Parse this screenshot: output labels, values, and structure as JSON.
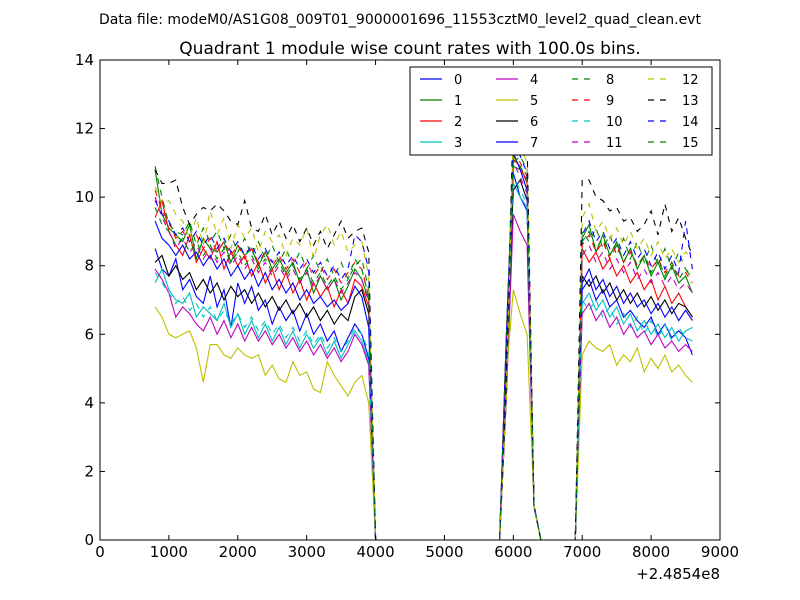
{
  "chart_data": {
    "type": "line",
    "suptitle": "Data file: modeM0/AS1G08_009T01_9000001696_11553cztM0_level2_quad_clean.evt",
    "title": "Quadrant 1 module wise count rates with 100.0s bins.",
    "xlabel": "",
    "ylabel": "",
    "x_offset_label": "+2.4854e8",
    "xlim": [
      0,
      9000
    ],
    "ylim": [
      0,
      14
    ],
    "xticks": [
      0,
      1000,
      2000,
      3000,
      4000,
      5000,
      6000,
      7000,
      8000,
      9000
    ],
    "yticks": [
      0,
      2,
      4,
      6,
      8,
      10,
      12,
      14
    ],
    "legend_position": "top-right",
    "x": {
      "start": 800,
      "step": 100,
      "count": 78
    },
    "series": [
      {
        "name": "0",
        "color": "#0000ff",
        "dash": "solid",
        "seg1": [
          8.5,
          7.9,
          7.7,
          8.2,
          7.3,
          7.6,
          7.1,
          6.9,
          7.7,
          6.8,
          7.3,
          6.2,
          7.5,
          6.9,
          7.4,
          6.7,
          7.0,
          6.3,
          6.8,
          6.4,
          6.7,
          6.1,
          6.6,
          6.0,
          6.3,
          5.8,
          6.1,
          5.5,
          5.9,
          6.3,
          6.0,
          5.3
        ],
        "seg2": [
          10.7,
          10.0,
          9.6
        ],
        "seg3": [
          7.3,
          7.6,
          7.0,
          7.3,
          6.8,
          7.0,
          6.5,
          6.7,
          6.4,
          6.2,
          6.5,
          6.0,
          6.3,
          5.9,
          6.1,
          5.9,
          5.4
        ],
        "scale": 1.0
      },
      {
        "name": "1",
        "color": "#008000",
        "dash": "solid",
        "seg1": [
          10.8,
          9.5,
          9.1,
          8.9,
          8.7,
          9.2,
          8.2,
          8.8,
          8.5,
          8.4,
          8.7,
          8.1,
          8.6,
          8.3,
          8.5,
          8.0,
          8.4,
          7.9,
          8.2,
          7.8,
          8.1,
          7.5,
          7.9,
          7.2,
          7.7,
          7.3,
          7.6,
          7.0,
          7.4,
          7.9,
          7.6,
          7.0
        ],
        "seg2": [
          10.9,
          10.8,
          10.5
        ],
        "seg3": [
          8.8,
          9.2,
          8.4,
          8.9,
          8.3,
          8.7,
          8.1,
          8.5,
          7.9,
          8.3,
          7.7,
          8.1,
          7.6,
          8.0,
          7.5,
          7.7,
          7.2
        ],
        "scale": 1.0
      },
      {
        "name": "2",
        "color": "#ff0000",
        "dash": "solid",
        "seg1": [
          9.4,
          9.9,
          9.0,
          8.6,
          8.3,
          8.9,
          8.1,
          8.5,
          8.2,
          8.7,
          7.9,
          8.4,
          8.0,
          8.3,
          7.7,
          8.1,
          7.5,
          7.9,
          7.3,
          7.8,
          7.2,
          7.6,
          7.0,
          7.5,
          7.1,
          7.4,
          6.8,
          7.3,
          6.9,
          7.6,
          7.4,
          6.8
        ],
        "seg2": [
          11.1,
          10.9,
          10.4
        ],
        "seg3": [
          8.5,
          8.1,
          8.4,
          7.9,
          8.2,
          7.7,
          8.0,
          7.5,
          7.8,
          7.3,
          7.6,
          7.0,
          7.4,
          6.9,
          7.2,
          6.8,
          6.5
        ],
        "scale": 1.0
      },
      {
        "name": "3",
        "color": "#00bfbf",
        "dash": "solid",
        "seg1": [
          7.5,
          7.9,
          7.3,
          7.0,
          6.9,
          7.2,
          6.5,
          6.8,
          6.6,
          6.4,
          6.9,
          6.2,
          6.6,
          6.0,
          6.4,
          5.9,
          6.3,
          5.8,
          6.2,
          5.7,
          6.1,
          5.6,
          6.0,
          5.6,
          5.9,
          5.4,
          5.8,
          5.3,
          5.7,
          6.1,
          5.8,
          5.2
        ],
        "seg2": [
          10.4,
          10.0,
          9.7
        ],
        "seg3": [
          6.9,
          7.2,
          6.7,
          7.0,
          6.5,
          6.8,
          6.3,
          6.6,
          6.1,
          6.4,
          6.0,
          6.3,
          5.9,
          6.2,
          5.8,
          6.1,
          6.2
        ],
        "scale": 1.0
      },
      {
        "name": "4",
        "color": "#bf00bf",
        "dash": "solid",
        "seg1": [
          7.9,
          7.6,
          7.2,
          6.5,
          6.8,
          6.6,
          6.3,
          6.1,
          6.5,
          6.0,
          6.4,
          5.9,
          6.3,
          5.8,
          6.2,
          5.8,
          6.1,
          5.7,
          6.0,
          5.6,
          5.9,
          5.5,
          5.8,
          5.4,
          5.7,
          5.3,
          5.6,
          5.2,
          5.5,
          6.0,
          5.7,
          5.1
        ],
        "seg2": [
          9.5,
          9.0,
          8.6
        ],
        "seg3": [
          6.6,
          6.9,
          6.4,
          6.7,
          6.2,
          6.5,
          6.0,
          6.3,
          5.9,
          6.1,
          5.7,
          6.0,
          5.6,
          5.8,
          5.5,
          5.7,
          5.5
        ],
        "scale": 1.0
      },
      {
        "name": "5",
        "color": "#bfbf00",
        "dash": "solid",
        "seg1": [
          6.8,
          6.5,
          6.0,
          5.9,
          6.0,
          6.1,
          5.6,
          4.6,
          5.7,
          5.7,
          5.4,
          5.3,
          5.6,
          5.4,
          5.3,
          5.4,
          4.8,
          5.1,
          4.7,
          4.6,
          5.2,
          4.8,
          4.9,
          4.4,
          4.3,
          5.2,
          4.8,
          4.5,
          4.2,
          4.6,
          4.8,
          4.0
        ],
        "seg2": [
          7.3,
          6.6,
          6.0
        ],
        "seg3": [
          5.4,
          5.8,
          5.6,
          5.5,
          5.7,
          5.1,
          5.4,
          5.2,
          5.6,
          4.9,
          5.3,
          5.0,
          5.4,
          4.9,
          5.1,
          4.8,
          4.6
        ],
        "scale": 1.0
      },
      {
        "name": "6",
        "color": "#000000",
        "dash": "solid",
        "seg1": [
          8.1,
          8.3,
          7.7,
          8.0,
          7.6,
          7.8,
          7.3,
          7.6,
          7.2,
          7.5,
          7.0,
          7.4,
          7.1,
          7.3,
          6.9,
          7.2,
          6.8,
          7.1,
          6.7,
          7.0,
          6.6,
          6.9,
          6.5,
          6.8,
          6.4,
          6.7,
          6.3,
          6.6,
          6.4,
          7.1,
          7.3,
          6.6
        ],
        "seg2": [
          10.2,
          10.5,
          9.9
        ],
        "seg3": [
          7.7,
          7.4,
          7.7,
          7.2,
          7.5,
          7.0,
          7.3,
          6.9,
          7.2,
          6.8,
          7.1,
          6.7,
          7.0,
          6.6,
          6.9,
          6.8,
          6.5
        ],
        "scale": 1.0
      },
      {
        "name": "7",
        "color": "#0000ff",
        "dash": "solid",
        "seg1": [
          9.3,
          8.8,
          8.6,
          8.3,
          8.6,
          8.2,
          8.4,
          8.0,
          8.3,
          7.9,
          8.2,
          7.7,
          8.0,
          7.6,
          7.9,
          7.4,
          7.8,
          7.3,
          7.6,
          7.2,
          7.5,
          7.0,
          7.3,
          6.9,
          7.1,
          6.8,
          7.0,
          6.7,
          6.9,
          7.4,
          7.1,
          6.2
        ],
        "seg2": [
          11.3,
          10.8,
          10.2
        ],
        "seg3": [
          7.5,
          7.9,
          7.3,
          7.6,
          7.1,
          7.4,
          6.9,
          7.2,
          6.8,
          7.0,
          6.6,
          6.9,
          6.5,
          6.8,
          6.4,
          6.7,
          6.4
        ],
        "scale": 1.0
      },
      {
        "name": "8",
        "color": "#008000",
        "dash": "dashed",
        "seg1": [
          10.9,
          10.0,
          9.2,
          9.0,
          8.9,
          9.3,
          8.6,
          9.1,
          8.7,
          9.0,
          8.5,
          8.9,
          8.4,
          8.8,
          8.3,
          8.7,
          8.2,
          8.6,
          8.1,
          8.5,
          8.0,
          8.4,
          7.9,
          8.3,
          7.8,
          8.2,
          7.7,
          8.1,
          7.6,
          8.0,
          8.2,
          7.3
        ],
        "seg2": [
          11.0,
          11.2,
          10.8
        ],
        "seg3": [
          9.0,
          8.7,
          9.1,
          8.5,
          8.9,
          8.3,
          8.8,
          8.2,
          8.7,
          8.1,
          8.6,
          8.0,
          8.5,
          7.9,
          8.4,
          7.9,
          7.7
        ],
        "scale": 1.0
      },
      {
        "name": "9",
        "color": "#ff0000",
        "dash": "dashed",
        "seg1": [
          10.2,
          9.6,
          9.3,
          8.8,
          9.0,
          8.7,
          8.9,
          8.5,
          8.8,
          8.4,
          8.7,
          8.3,
          8.6,
          8.2,
          8.5,
          8.1,
          8.4,
          8.0,
          8.3,
          7.9,
          8.2,
          7.8,
          8.1,
          7.7,
          8.0,
          7.6,
          7.9,
          7.5,
          7.8,
          8.1,
          7.9,
          7.1
        ],
        "seg2": [
          11.4,
          11.0,
          10.6
        ],
        "seg3": [
          8.6,
          8.9,
          8.4,
          8.7,
          8.2,
          8.6,
          8.1,
          8.4,
          8.0,
          8.3,
          7.9,
          8.2,
          7.8,
          8.1,
          7.7,
          7.8,
          7.5
        ],
        "scale": 1.0
      },
      {
        "name": "10",
        "color": "#00bfbf",
        "dash": "dashed",
        "seg1": [
          7.8,
          7.5,
          7.2,
          6.9,
          7.1,
          6.7,
          6.9,
          6.5,
          6.8,
          6.4,
          6.7,
          6.3,
          6.6,
          6.2,
          6.5,
          6.1,
          6.4,
          6.0,
          6.3,
          5.9,
          6.2,
          5.8,
          6.1,
          5.7,
          6.0,
          5.6,
          5.9,
          5.5,
          5.8,
          6.2,
          6.0,
          5.5
        ],
        "seg2": [
          10.6,
          10.2,
          9.8
        ],
        "seg3": [
          7.0,
          6.7,
          7.0,
          6.5,
          6.8,
          6.3,
          6.6,
          6.2,
          6.5,
          6.0,
          6.4,
          5.9,
          6.3,
          5.8,
          6.2,
          5.9,
          5.8
        ],
        "scale": 1.0
      },
      {
        "name": "11",
        "color": "#bf00bf",
        "dash": "dashed",
        "seg1": [
          10.0,
          9.4,
          9.0,
          8.5,
          8.8,
          8.4,
          8.6,
          8.2,
          8.5,
          8.1,
          8.4,
          8.0,
          8.3,
          7.9,
          8.2,
          7.8,
          8.1,
          7.7,
          8.0,
          7.6,
          7.9,
          7.5,
          7.8,
          7.4,
          7.7,
          7.3,
          7.6,
          7.2,
          7.5,
          7.8,
          7.6,
          6.9
        ],
        "seg2": [
          11.0,
          10.6,
          10.1
        ],
        "seg3": [
          8.3,
          8.6,
          8.1,
          8.4,
          7.9,
          8.2,
          7.8,
          8.1,
          7.6,
          7.9,
          7.5,
          7.8,
          7.4,
          7.7,
          7.3,
          7.5,
          7.2
        ],
        "scale": 1.0
      },
      {
        "name": "12",
        "color": "#bfbf00",
        "dash": "dashed",
        "seg1": [
          10.3,
          9.8,
          9.9,
          9.5,
          9.3,
          8.8,
          9.4,
          8.6,
          9.6,
          8.9,
          9.4,
          8.5,
          9.2,
          8.8,
          9.1,
          8.4,
          9.0,
          8.7,
          8.9,
          8.3,
          8.8,
          8.6,
          9.1,
          8.2,
          8.9,
          9.2,
          8.6,
          9.0,
          8.4,
          8.6,
          8.7,
          7.7
        ],
        "seg2": [
          12.0,
          11.5,
          11.0
        ],
        "seg3": [
          9.4,
          9.8,
          9.0,
          9.3,
          8.8,
          9.1,
          8.6,
          9.0,
          8.5,
          8.8,
          8.3,
          8.7,
          8.2,
          8.5,
          8.1,
          8.4,
          8.2
        ],
        "scale": 1.0
      },
      {
        "name": "13",
        "color": "#000000",
        "dash": "dashed",
        "seg1": [
          10.8,
          10.4,
          10.4,
          10.5,
          9.7,
          9.2,
          9.5,
          9.7,
          9.6,
          9.8,
          9.6,
          9.3,
          9.2,
          9.9,
          9.1,
          9.0,
          9.5,
          8.9,
          9.3,
          8.8,
          9.2,
          8.7,
          9.1,
          8.6,
          9.0,
          8.5,
          8.9,
          9.3,
          8.8,
          9.0,
          9.1,
          8.4
        ],
        "seg2": [
          12.5,
          12.2,
          11.6
        ],
        "seg3": [
          10.5,
          10.5,
          10.0,
          9.9,
          9.6,
          9.7,
          9.3,
          9.4,
          9.0,
          9.2,
          9.6,
          8.9,
          9.8,
          9.0,
          9.4,
          8.8,
          8.3
        ],
        "scale": 1.0
      },
      {
        "name": "14",
        "color": "#0000ff",
        "dash": "dashed",
        "seg1": [
          9.9,
          9.5,
          9.3,
          8.9,
          9.1,
          8.7,
          9.0,
          8.6,
          8.9,
          8.5,
          8.8,
          8.4,
          8.7,
          8.3,
          8.6,
          8.2,
          8.5,
          8.1,
          8.4,
          8.0,
          8.3,
          7.9,
          8.2,
          7.8,
          8.1,
          7.7,
          8.0,
          7.6,
          7.9,
          8.9,
          8.7,
          7.9
        ],
        "seg2": [
          11.6,
          11.2,
          10.7
        ],
        "seg3": [
          8.9,
          9.3,
          8.7,
          9.0,
          8.5,
          8.8,
          8.3,
          8.7,
          8.2,
          8.5,
          8.0,
          8.4,
          7.9,
          8.3,
          7.8,
          9.3,
          7.9
        ],
        "scale": 1.0
      },
      {
        "name": "15",
        "color": "#008000",
        "dash": "dashed",
        "seg1": [
          9.7,
          9.2,
          9.0,
          8.6,
          8.8,
          8.4,
          8.7,
          8.3,
          8.6,
          8.2,
          8.5,
          8.1,
          8.4,
          8.0,
          8.3,
          7.9,
          8.2,
          7.8,
          8.1,
          7.7,
          8.0,
          7.6,
          7.9,
          7.5,
          7.8,
          7.4,
          7.7,
          7.3,
          7.6,
          8.2,
          7.9,
          7.1
        ],
        "seg2": [
          11.2,
          10.9,
          10.5
        ],
        "seg3": [
          8.7,
          9.0,
          8.5,
          8.8,
          8.3,
          8.6,
          8.1,
          8.5,
          8.0,
          8.3,
          7.8,
          8.2,
          7.7,
          8.1,
          7.6,
          7.9,
          7.6
        ],
        "scale": 1.0
      }
    ]
  }
}
